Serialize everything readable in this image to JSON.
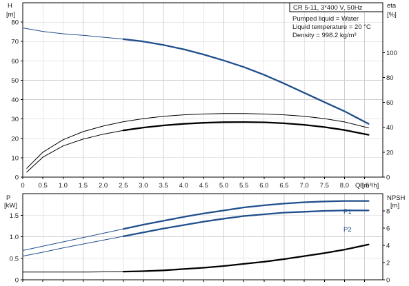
{
  "info_box": {
    "title": "CR 5-11, 3*400 V, 50Hz",
    "line1": "Pumped liquid = Water",
    "line2": "Liquid temperature = 20 °C",
    "line3": "Density = 998.2 kg/m³"
  },
  "chart_data": [
    {
      "type": "line",
      "panel": "head-efficiency",
      "ylabel_left": "H",
      "yunit_left": "[m]",
      "ylabel_right": "eta",
      "yunit_right": "[%]",
      "xlabel": "Q [m³/h]",
      "xlim": [
        0,
        8.6
      ],
      "x_ticks": [
        "0",
        "0.5",
        "1.0",
        "1.5",
        "2.0",
        "2.5",
        "3.0",
        "3.5",
        "4.0",
        "4.5",
        "5.0",
        "5.5",
        "6.0",
        "6.5",
        "7.0",
        "7.5",
        "8.0",
        "8.5"
      ],
      "ylim_left": [
        0,
        90
      ],
      "y_ticks_left": [
        "0",
        "10",
        "20",
        "30",
        "40",
        "50",
        "60",
        "70",
        "80"
      ],
      "ylim_right": [
        0,
        140
      ],
      "y_ticks_right": [
        "0",
        "20",
        "40",
        "60",
        "80",
        "100"
      ],
      "grid": true,
      "series": [
        {
          "axis": "left",
          "style": "thin",
          "color": "#1f4e8c",
          "x": [
            0,
            0.5,
            1.0,
            1.5,
            2.0,
            2.5
          ],
          "y": [
            77,
            75.2,
            74,
            73.2,
            72.2,
            71.2
          ]
        },
        {
          "axis": "left",
          "style": "thick",
          "color": "#1f4e8c",
          "x": [
            2.5,
            3.0,
            3.5,
            4.0,
            4.5,
            5.0,
            5.5,
            6.0,
            6.5,
            7.0,
            7.5,
            8.0,
            8.6
          ],
          "y": [
            71.2,
            70,
            68.2,
            66,
            63.3,
            60.2,
            56.8,
            52.8,
            48.3,
            43.5,
            38.7,
            34,
            27.5
          ]
        },
        {
          "axis": "right",
          "style": "thin",
          "color": "#000000",
          "x": [
            0.1,
            0.5,
            1.0,
            1.5,
            2.0,
            2.5,
            3.0,
            3.5,
            4.0,
            4.5,
            5.0,
            5.5,
            6.0,
            6.5,
            7.0,
            7.5,
            8.0,
            8.6
          ],
          "y": [
            7,
            20,
            30,
            36.5,
            41,
            44.5,
            47,
            48.8,
            50,
            50.7,
            51,
            51,
            50.7,
            50,
            48.8,
            47,
            44.3,
            39.5
          ]
        },
        {
          "axis": "right",
          "style": "thin",
          "color": "#000000",
          "x": [
            0.1,
            0.5,
            1.0,
            1.5,
            2.0,
            2.5
          ],
          "y": [
            4,
            16,
            25,
            30.5,
            34.5,
            37.5
          ]
        },
        {
          "axis": "right",
          "style": "thick",
          "color": "#000000",
          "x": [
            2.5,
            3.0,
            3.5,
            4.0,
            4.5,
            5.0,
            5.5,
            6.0,
            6.5,
            7.0,
            7.5,
            8.0,
            8.6
          ],
          "y": [
            37.5,
            39.8,
            41.5,
            42.8,
            43.6,
            44.1,
            44.2,
            44,
            43.2,
            42,
            40.2,
            37.8,
            34
          ]
        }
      ]
    },
    {
      "type": "line",
      "panel": "power-npsh",
      "ylabel_left": "P",
      "yunit_left": "[kW]",
      "ylabel_right": "NPSH",
      "yunit_right": "[m]",
      "xlim": [
        0,
        8.6
      ],
      "ylim_left": [
        0,
        2.0
      ],
      "y_ticks_left": [
        "0",
        "0.5",
        "1.0",
        "1.5"
      ],
      "ylim_right": [
        0,
        10
      ],
      "y_ticks_right": [
        "0",
        "2",
        "4",
        "6",
        "8"
      ],
      "grid": true,
      "series": [
        {
          "name": "P1",
          "axis": "left",
          "style": "thin",
          "color": "#1f4e8c",
          "x": [
            0,
            0.5,
            1.0,
            1.5,
            2.0,
            2.5
          ],
          "y": [
            0.68,
            0.78,
            0.88,
            0.98,
            1.08,
            1.18
          ]
        },
        {
          "name": "P1",
          "axis": "left",
          "style": "thick",
          "color": "#1f4e8c",
          "x": [
            2.5,
            3.0,
            3.5,
            4.0,
            4.5,
            5.0,
            5.5,
            6.0,
            6.5,
            7.0,
            7.5,
            8.0,
            8.6
          ],
          "y": [
            1.18,
            1.28,
            1.37,
            1.46,
            1.54,
            1.61,
            1.68,
            1.73,
            1.77,
            1.8,
            1.82,
            1.83,
            1.83
          ]
        },
        {
          "name": "P2",
          "axis": "left",
          "style": "thin",
          "color": "#1f4e8c",
          "x": [
            0,
            0.5,
            1.0,
            1.5,
            2.0,
            2.5
          ],
          "y": [
            0.55,
            0.64,
            0.74,
            0.83,
            0.92,
            1.01
          ]
        },
        {
          "name": "P2",
          "axis": "left",
          "style": "thick",
          "color": "#1f4e8c",
          "x": [
            2.5,
            3.0,
            3.5,
            4.0,
            4.5,
            5.0,
            5.5,
            6.0,
            6.5,
            7.0,
            7.5,
            8.0,
            8.6
          ],
          "y": [
            1.01,
            1.1,
            1.19,
            1.27,
            1.35,
            1.42,
            1.48,
            1.52,
            1.56,
            1.58,
            1.6,
            1.61,
            1.61
          ]
        },
        {
          "name": "NPSH",
          "axis": "right",
          "style": "thin",
          "color": "#000000",
          "x": [
            0,
            0.5,
            1.0,
            1.5,
            2.0,
            2.5
          ],
          "y": [
            0.9,
            0.9,
            0.9,
            0.9,
            0.92,
            0.95
          ]
        },
        {
          "name": "NPSH",
          "axis": "right",
          "style": "thick",
          "color": "#000000",
          "x": [
            2.5,
            3.0,
            3.5,
            4.0,
            4.5,
            5.0,
            5.5,
            6.0,
            6.5,
            7.0,
            7.5,
            8.0,
            8.6
          ],
          "y": [
            0.95,
            1.0,
            1.1,
            1.25,
            1.4,
            1.6,
            1.85,
            2.1,
            2.4,
            2.75,
            3.1,
            3.5,
            4.1
          ]
        }
      ]
    }
  ]
}
